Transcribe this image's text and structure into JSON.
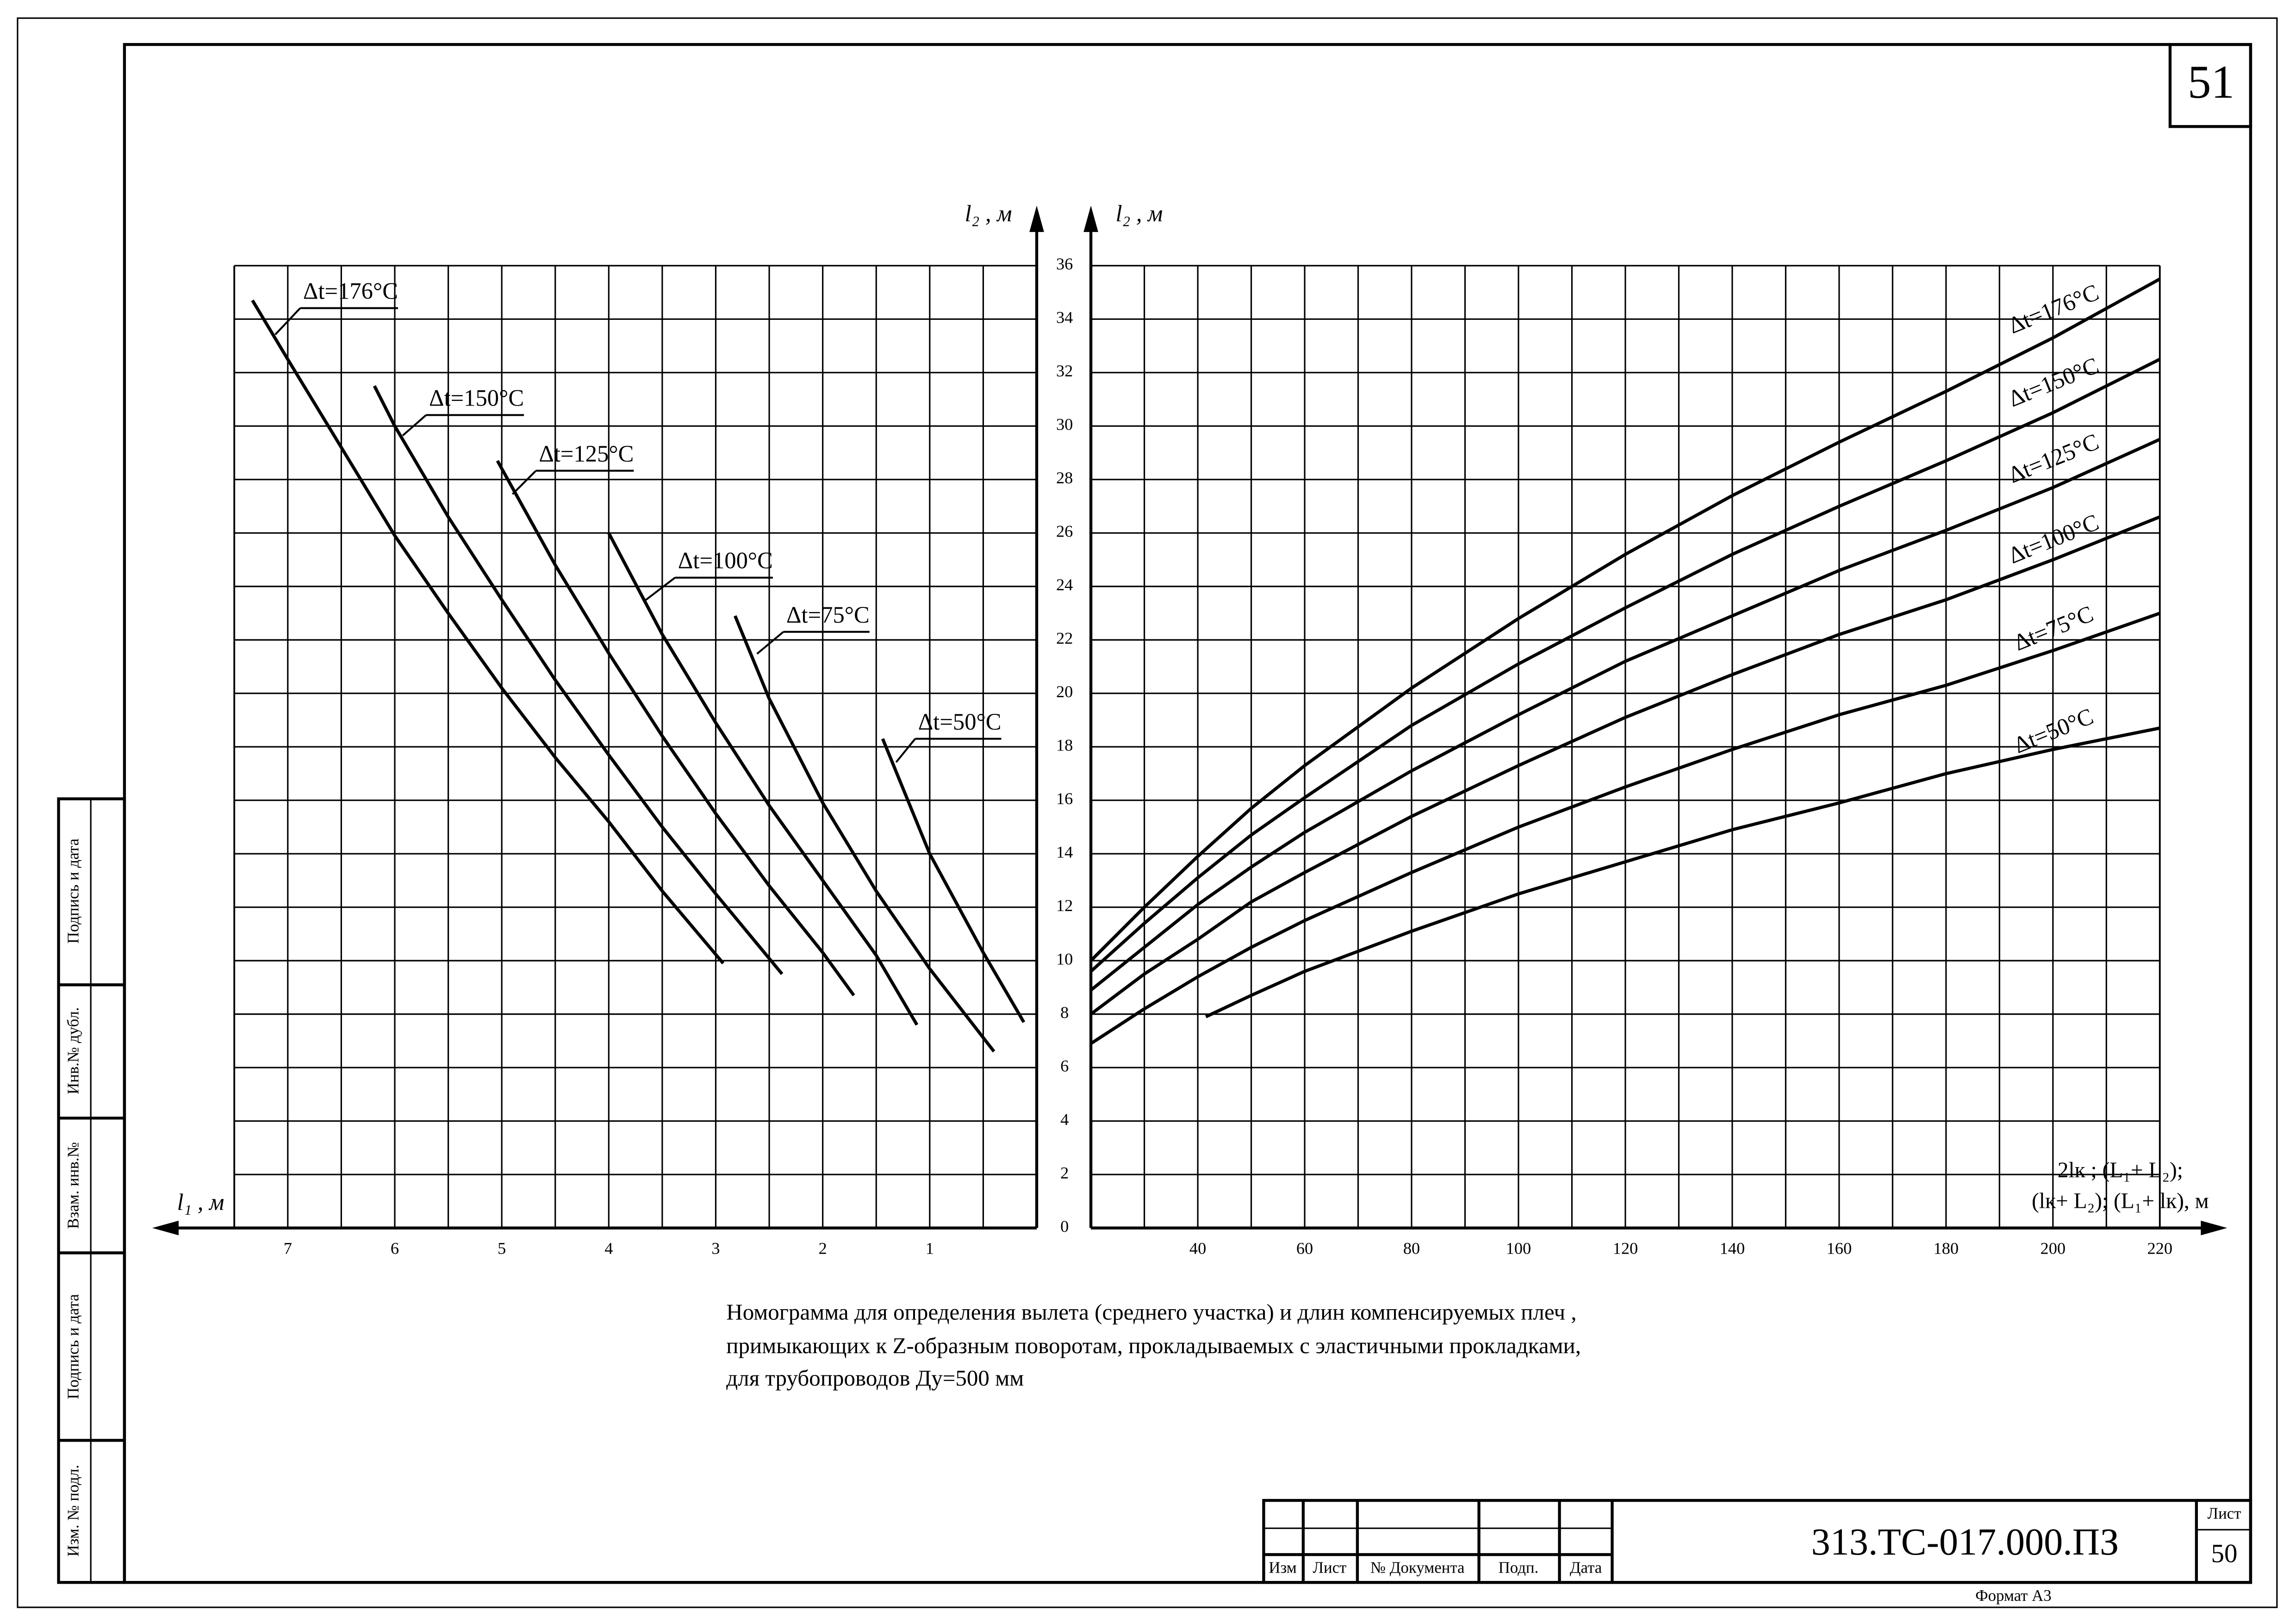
{
  "chart_data": [
    {
      "type": "line",
      "x_label": "l₁ , м",
      "y_label": "l₂ , м",
      "xlim": [
        7.5,
        0
      ],
      "xticks": [
        7,
        6,
        5,
        4,
        3,
        2,
        1
      ],
      "ylim": [
        0,
        36
      ],
      "yticks": [
        0,
        2,
        4,
        6,
        8,
        10,
        12,
        14,
        16,
        18,
        20,
        22,
        24,
        26,
        28,
        30,
        32,
        34,
        36
      ],
      "grid": true,
      "color": "#000000",
      "series": [
        {
          "name": "Δt=176°C",
          "x": [
            7.33,
            7,
            6.5,
            6,
            5.5,
            5,
            4.5,
            4,
            3.5,
            2.93
          ],
          "values": [
            34.7,
            32.5,
            29.2,
            25.9,
            23,
            20.2,
            17.6,
            15.2,
            12.6,
            9.9
          ]
        },
        {
          "name": "Δt=150°C",
          "x": [
            6.19,
            6,
            5.5,
            5,
            4.5,
            4,
            3.5,
            3,
            2.38
          ],
          "values": [
            31.5,
            30,
            26.6,
            23.5,
            20.5,
            17.7,
            15,
            12.5,
            9.5
          ]
        },
        {
          "name": "Δt=125°C",
          "x": [
            5.04,
            4.5,
            4,
            3.5,
            3,
            2.5,
            2,
            1.71
          ],
          "values": [
            28.7,
            24.8,
            21.5,
            18.4,
            15.5,
            12.8,
            10.3,
            8.7
          ]
        },
        {
          "name": "Δt=100°C",
          "x": [
            4,
            3.5,
            3,
            2.5,
            2,
            1.5,
            1.12
          ],
          "values": [
            26,
            22.2,
            18.9,
            15.8,
            13,
            10.2,
            7.6
          ]
        },
        {
          "name": "Δt=75°C",
          "x": [
            2.82,
            2.5,
            2,
            1.5,
            1,
            0.4
          ],
          "values": [
            22.9,
            19.8,
            15.9,
            12.6,
            9.7,
            6.6
          ]
        },
        {
          "name": "Δt=50°C",
          "x": [
            1.44,
            1,
            0.5,
            0.12
          ],
          "values": [
            18.3,
            14,
            10.3,
            7.7
          ]
        }
      ]
    },
    {
      "type": "line",
      "x_label": [
        "2lк ; (L₁+ L₂);",
        "(lк+ L₂); (L₁+ lк), м"
      ],
      "y_label": "l₂ , м",
      "xlim": [
        20,
        220
      ],
      "xticks": [
        40,
        60,
        80,
        100,
        120,
        140,
        160,
        180,
        200,
        220
      ],
      "ylim": [
        0,
        36
      ],
      "yticks": [
        0,
        2,
        4,
        6,
        8,
        10,
        12,
        14,
        16,
        18,
        20,
        22,
        24,
        26,
        28,
        30,
        32,
        34,
        36
      ],
      "grid": true,
      "color": "#000000",
      "series": [
        {
          "name": "Δt=176°C",
          "x": [
            20,
            30,
            40,
            50,
            60,
            80,
            100,
            120,
            140,
            160,
            180,
            200,
            220
          ],
          "values": [
            10,
            12,
            13.9,
            15.7,
            17.3,
            20.2,
            22.8,
            25.2,
            27.4,
            29.4,
            31.3,
            33.3,
            35.5
          ]
        },
        {
          "name": "Δt=150°C",
          "x": [
            20,
            30,
            40,
            50,
            60,
            80,
            100,
            120,
            140,
            160,
            180,
            200,
            220
          ],
          "values": [
            9.6,
            11.4,
            13.1,
            14.7,
            16.1,
            18.8,
            21.1,
            23.2,
            25.2,
            27,
            28.7,
            30.5,
            32.5
          ]
        },
        {
          "name": "Δt=125°C",
          "x": [
            20,
            30,
            40,
            50,
            60,
            80,
            100,
            120,
            140,
            160,
            180,
            200,
            220
          ],
          "values": [
            8.9,
            10.5,
            12.1,
            13.5,
            14.8,
            17.1,
            19.2,
            21.2,
            22.9,
            24.6,
            26.1,
            27.7,
            29.5
          ]
        },
        {
          "name": "Δt=100°C",
          "x": [
            20,
            30,
            40,
            50,
            60,
            80,
            100,
            120,
            140,
            160,
            180,
            200,
            220
          ],
          "values": [
            8,
            9.5,
            10.8,
            12.2,
            13.3,
            15.4,
            17.3,
            19.1,
            20.7,
            22.2,
            23.5,
            25,
            26.6
          ]
        },
        {
          "name": "Δt=75°C",
          "x": [
            20,
            30,
            40,
            50,
            60,
            80,
            100,
            120,
            140,
            160,
            180,
            200,
            220
          ],
          "values": [
            6.9,
            8.2,
            9.4,
            10.5,
            11.5,
            13.3,
            15,
            16.5,
            17.9,
            19.2,
            20.3,
            21.6,
            23
          ]
        },
        {
          "name": "Δt=50°C",
          "x": [
            41.5,
            50,
            60,
            80,
            100,
            120,
            140,
            160,
            180,
            200,
            220
          ],
          "values": [
            7.9,
            8.7,
            9.6,
            11.1,
            12.5,
            13.7,
            14.9,
            15.9,
            17,
            17.9,
            18.7
          ]
        }
      ]
    }
  ],
  "caption": [
    "Номограмма для определения вылета (среднего участка) и длин компенсируемых плеч ,",
    "примыкающих к Z-образным поворотам, прокладываемых с эластичными прокладками,",
    "для трубопроводов Ду=500 мм"
  ],
  "sheet_number": "51",
  "side_stamp": [
    "Подпись и дата",
    "Инв.№ дубл.",
    "Взам. инв.№",
    "Подпись и дата",
    "Изм. № подл."
  ],
  "title_block": {
    "columns": [
      "Изм",
      "Лист",
      "№ Документа",
      "Подп.",
      "Дата"
    ],
    "designation": "313.ТС-017.000.ПЗ",
    "sheet_label": "Лист",
    "sheet": "50",
    "format": "Формат А3"
  }
}
